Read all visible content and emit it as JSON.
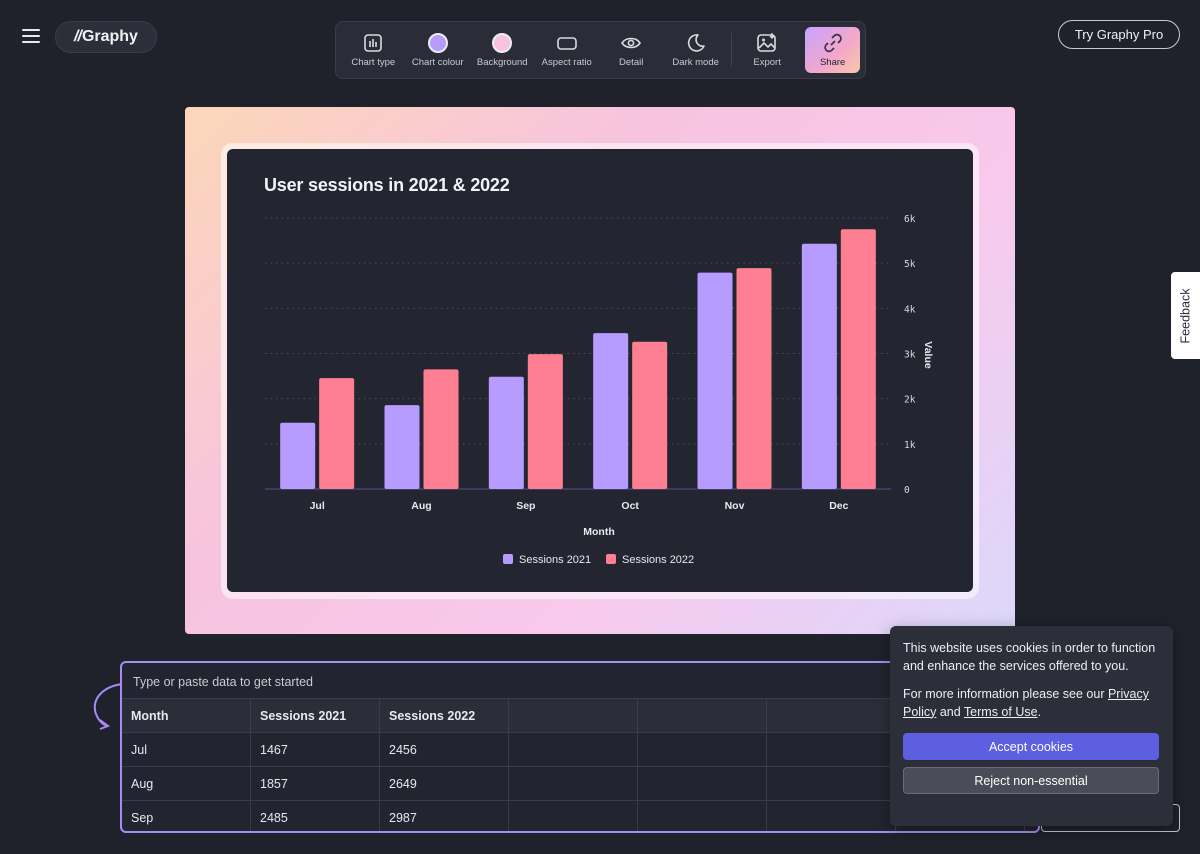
{
  "app": {
    "logo_text": "Graphy",
    "logo_mark": "//"
  },
  "toolbar": {
    "items": [
      {
        "label": "Chart type",
        "icon": "bar-chart-icon"
      },
      {
        "label": "Chart colour",
        "icon": "color-swatch-icon",
        "color": "#b79cff"
      },
      {
        "label": "Background",
        "icon": "background-swatch-icon",
        "color": "#f7c3df"
      },
      {
        "label": "Aspect ratio",
        "icon": "aspect-ratio-icon"
      },
      {
        "label": "Detail",
        "icon": "eye-icon"
      },
      {
        "label": "Dark mode",
        "icon": "moon-icon"
      },
      {
        "label": "Export",
        "icon": "image-export-icon"
      },
      {
        "label": "Share",
        "icon": "link-icon"
      }
    ]
  },
  "header": {
    "pro_button": "Try Graphy Pro",
    "feedback": "Feedback"
  },
  "chart_data": {
    "type": "bar",
    "title": "User sessions in 2021 & 2022",
    "xlabel": "Month",
    "ylabel": "Value",
    "categories": [
      "Jul",
      "Aug",
      "Sep",
      "Oct",
      "Nov",
      "Dec"
    ],
    "series": [
      {
        "name": "Sessions 2021",
        "color": "#b69cff",
        "values": [
          1467,
          1857,
          2485,
          3450,
          4790,
          5430
        ]
      },
      {
        "name": "Sessions 2022",
        "color": "#ff7f92",
        "values": [
          2456,
          2649,
          2987,
          3260,
          4890,
          5750
        ]
      }
    ],
    "ylim": [
      0,
      6000
    ],
    "yticks": [
      "0",
      "1k",
      "2k",
      "3k",
      "4k",
      "5k",
      "6k"
    ],
    "y_axis_side": "right",
    "grid": true,
    "legend": "bottom"
  },
  "data_panel": {
    "hint": "Type or paste data to get started",
    "headers": [
      "Month",
      "Sessions 2021",
      "Sessions 2022",
      "",
      "",
      "",
      ""
    ],
    "rows": [
      [
        "Jul",
        "1467",
        "2456",
        "",
        "",
        "",
        ""
      ],
      [
        "Aug",
        "1857",
        "2649",
        "",
        "",
        "",
        ""
      ],
      [
        "Sep",
        "2485",
        "2987",
        "",
        "",
        "",
        ""
      ]
    ]
  },
  "cookie": {
    "text1": "This website uses cookies in order to function and enhance the services offered to you.",
    "text2_prefix": "For more information please see our ",
    "privacy_link": "Privacy Policy",
    "and": " and ",
    "terms_link": "Terms of Use",
    "period": ".",
    "accept": "Accept cookies",
    "reject": "Reject non-essential"
  }
}
